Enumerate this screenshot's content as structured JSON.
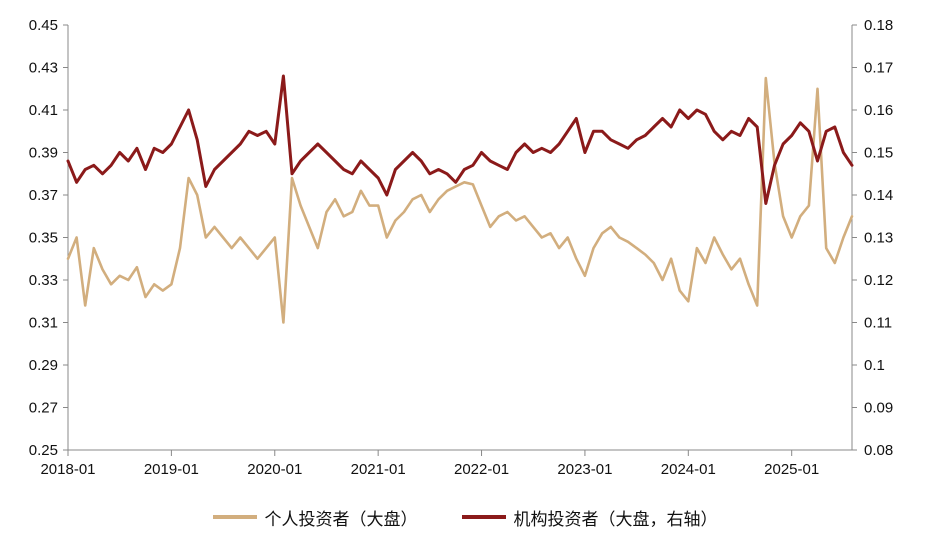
{
  "chart_data": {
    "type": "line",
    "x_ticks": [
      "2018-01",
      "2019-01",
      "2020-01",
      "2021-01",
      "2022-01",
      "2023-01",
      "2024-01",
      "2025-01"
    ],
    "x_range": [
      "2018-01",
      "2025-08"
    ],
    "y_left": {
      "ticks": [
        "0.25",
        "0.27",
        "0.29",
        "0.31",
        "0.33",
        "0.35",
        "0.37",
        "0.39",
        "0.41",
        "0.43",
        "0.45"
      ],
      "ylim": [
        0.25,
        0.45
      ]
    },
    "y_right": {
      "ticks": [
        "0.08",
        "0.09",
        "0.1",
        "0.11",
        "0.12",
        "0.13",
        "0.14",
        "0.15",
        "0.16",
        "0.17",
        "0.18"
      ],
      "ylim": [
        0.08,
        0.18
      ]
    },
    "grid": false,
    "legend_position": "bottom",
    "series": [
      {
        "name": "个人投资者（大盘）",
        "axis": "left",
        "color": "#D2AE7E",
        "points": [
          [
            "2018-01",
            0.34
          ],
          [
            "2018-02",
            0.35
          ],
          [
            "2018-03",
            0.318
          ],
          [
            "2018-04",
            0.345
          ],
          [
            "2018-05",
            0.335
          ],
          [
            "2018-06",
            0.328
          ],
          [
            "2018-07",
            0.332
          ],
          [
            "2018-08",
            0.33
          ],
          [
            "2018-09",
            0.336
          ],
          [
            "2018-10",
            0.322
          ],
          [
            "2018-11",
            0.328
          ],
          [
            "2018-12",
            0.325
          ],
          [
            "2019-01",
            0.328
          ],
          [
            "2019-02",
            0.345
          ],
          [
            "2019-03",
            0.378
          ],
          [
            "2019-04",
            0.37
          ],
          [
            "2019-05",
            0.35
          ],
          [
            "2019-06",
            0.355
          ],
          [
            "2019-07",
            0.35
          ],
          [
            "2019-08",
            0.345
          ],
          [
            "2019-09",
            0.35
          ],
          [
            "2019-10",
            0.345
          ],
          [
            "2019-11",
            0.34
          ],
          [
            "2019-12",
            0.345
          ],
          [
            "2020-01",
            0.35
          ],
          [
            "2020-02",
            0.31
          ],
          [
            "2020-03",
            0.378
          ],
          [
            "2020-04",
            0.365
          ],
          [
            "2020-05",
            0.355
          ],
          [
            "2020-06",
            0.345
          ],
          [
            "2020-07",
            0.362
          ],
          [
            "2020-08",
            0.368
          ],
          [
            "2020-09",
            0.36
          ],
          [
            "2020-10",
            0.362
          ],
          [
            "2020-11",
            0.372
          ],
          [
            "2020-12",
            0.365
          ],
          [
            "2021-01",
            0.365
          ],
          [
            "2021-02",
            0.35
          ],
          [
            "2021-03",
            0.358
          ],
          [
            "2021-04",
            0.362
          ],
          [
            "2021-05",
            0.368
          ],
          [
            "2021-06",
            0.37
          ],
          [
            "2021-07",
            0.362
          ],
          [
            "2021-08",
            0.368
          ],
          [
            "2021-09",
            0.372
          ],
          [
            "2021-10",
            0.374
          ],
          [
            "2021-11",
            0.376
          ],
          [
            "2021-12",
            0.375
          ],
          [
            "2022-01",
            0.365
          ],
          [
            "2022-02",
            0.355
          ],
          [
            "2022-03",
            0.36
          ],
          [
            "2022-04",
            0.362
          ],
          [
            "2022-05",
            0.358
          ],
          [
            "2022-06",
            0.36
          ],
          [
            "2022-07",
            0.355
          ],
          [
            "2022-08",
            0.35
          ],
          [
            "2022-09",
            0.352
          ],
          [
            "2022-10",
            0.345
          ],
          [
            "2022-11",
            0.35
          ],
          [
            "2022-12",
            0.34
          ],
          [
            "2023-01",
            0.332
          ],
          [
            "2023-02",
            0.345
          ],
          [
            "2023-03",
            0.352
          ],
          [
            "2023-04",
            0.355
          ],
          [
            "2023-05",
            0.35
          ],
          [
            "2023-06",
            0.348
          ],
          [
            "2023-07",
            0.345
          ],
          [
            "2023-08",
            0.342
          ],
          [
            "2023-09",
            0.338
          ],
          [
            "2023-10",
            0.33
          ],
          [
            "2023-11",
            0.34
          ],
          [
            "2023-12",
            0.325
          ],
          [
            "2024-01",
            0.32
          ],
          [
            "2024-02",
            0.345
          ],
          [
            "2024-03",
            0.338
          ],
          [
            "2024-04",
            0.35
          ],
          [
            "2024-05",
            0.342
          ],
          [
            "2024-06",
            0.335
          ],
          [
            "2024-07",
            0.34
          ],
          [
            "2024-08",
            0.328
          ],
          [
            "2024-09",
            0.318
          ],
          [
            "2024-10",
            0.425
          ],
          [
            "2024-11",
            0.385
          ],
          [
            "2024-12",
            0.36
          ],
          [
            "2025-01",
            0.35
          ],
          [
            "2025-02",
            0.36
          ],
          [
            "2025-03",
            0.365
          ],
          [
            "2025-04",
            0.42
          ],
          [
            "2025-05",
            0.345
          ],
          [
            "2025-06",
            0.338
          ],
          [
            "2025-07",
            0.35
          ],
          [
            "2025-08",
            0.36
          ]
        ]
      },
      {
        "name": "机构投资者（大盘，右轴）",
        "axis": "right",
        "color": "#8B1A1A",
        "points": [
          [
            "2018-01",
            0.148
          ],
          [
            "2018-02",
            0.143
          ],
          [
            "2018-03",
            0.146
          ],
          [
            "2018-04",
            0.147
          ],
          [
            "2018-05",
            0.145
          ],
          [
            "2018-06",
            0.147
          ],
          [
            "2018-07",
            0.15
          ],
          [
            "2018-08",
            0.148
          ],
          [
            "2018-09",
            0.151
          ],
          [
            "2018-10",
            0.146
          ],
          [
            "2018-11",
            0.151
          ],
          [
            "2018-12",
            0.15
          ],
          [
            "2019-01",
            0.152
          ],
          [
            "2019-02",
            0.156
          ],
          [
            "2019-03",
            0.16
          ],
          [
            "2019-04",
            0.153
          ],
          [
            "2019-05",
            0.142
          ],
          [
            "2019-06",
            0.146
          ],
          [
            "2019-07",
            0.148
          ],
          [
            "2019-08",
            0.15
          ],
          [
            "2019-09",
            0.152
          ],
          [
            "2019-10",
            0.155
          ],
          [
            "2019-11",
            0.154
          ],
          [
            "2019-12",
            0.155
          ],
          [
            "2020-01",
            0.152
          ],
          [
            "2020-02",
            0.168
          ],
          [
            "2020-03",
            0.145
          ],
          [
            "2020-04",
            0.148
          ],
          [
            "2020-05",
            0.15
          ],
          [
            "2020-06",
            0.152
          ],
          [
            "2020-07",
            0.15
          ],
          [
            "2020-08",
            0.148
          ],
          [
            "2020-09",
            0.146
          ],
          [
            "2020-10",
            0.145
          ],
          [
            "2020-11",
            0.148
          ],
          [
            "2020-12",
            0.146
          ],
          [
            "2021-01",
            0.144
          ],
          [
            "2021-02",
            0.14
          ],
          [
            "2021-03",
            0.146
          ],
          [
            "2021-04",
            0.148
          ],
          [
            "2021-05",
            0.15
          ],
          [
            "2021-06",
            0.148
          ],
          [
            "2021-07",
            0.145
          ],
          [
            "2021-08",
            0.146
          ],
          [
            "2021-09",
            0.145
          ],
          [
            "2021-10",
            0.143
          ],
          [
            "2021-11",
            0.146
          ],
          [
            "2021-12",
            0.147
          ],
          [
            "2022-01",
            0.15
          ],
          [
            "2022-02",
            0.148
          ],
          [
            "2022-03",
            0.147
          ],
          [
            "2022-04",
            0.146
          ],
          [
            "2022-05",
            0.15
          ],
          [
            "2022-06",
            0.152
          ],
          [
            "2022-07",
            0.15
          ],
          [
            "2022-08",
            0.151
          ],
          [
            "2022-09",
            0.15
          ],
          [
            "2022-10",
            0.152
          ],
          [
            "2022-11",
            0.155
          ],
          [
            "2022-12",
            0.158
          ],
          [
            "2023-01",
            0.15
          ],
          [
            "2023-02",
            0.155
          ],
          [
            "2023-03",
            0.155
          ],
          [
            "2023-04",
            0.153
          ],
          [
            "2023-05",
            0.152
          ],
          [
            "2023-06",
            0.151
          ],
          [
            "2023-07",
            0.153
          ],
          [
            "2023-08",
            0.154
          ],
          [
            "2023-09",
            0.156
          ],
          [
            "2023-10",
            0.158
          ],
          [
            "2023-11",
            0.156
          ],
          [
            "2023-12",
            0.16
          ],
          [
            "2024-01",
            0.158
          ],
          [
            "2024-02",
            0.16
          ],
          [
            "2024-03",
            0.159
          ],
          [
            "2024-04",
            0.155
          ],
          [
            "2024-05",
            0.153
          ],
          [
            "2024-06",
            0.155
          ],
          [
            "2024-07",
            0.154
          ],
          [
            "2024-08",
            0.158
          ],
          [
            "2024-09",
            0.156
          ],
          [
            "2024-10",
            0.138
          ],
          [
            "2024-11",
            0.147
          ],
          [
            "2024-12",
            0.152
          ],
          [
            "2025-01",
            0.154
          ],
          [
            "2025-02",
            0.157
          ],
          [
            "2025-03",
            0.155
          ],
          [
            "2025-04",
            0.148
          ],
          [
            "2025-05",
            0.155
          ],
          [
            "2025-06",
            0.156
          ],
          [
            "2025-07",
            0.15
          ],
          [
            "2025-08",
            0.147
          ]
        ]
      }
    ]
  }
}
